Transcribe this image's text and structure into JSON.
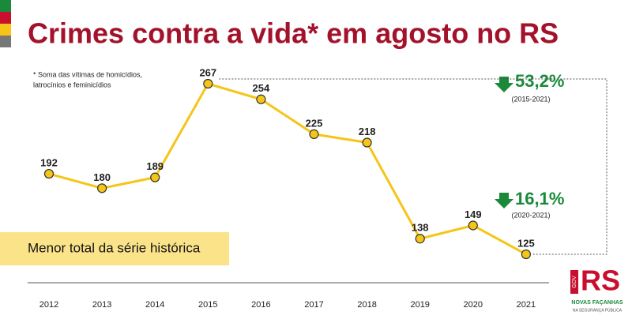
{
  "chart_data": {
    "type": "line",
    "title": "Crimes contra a vida* em agosto no RS",
    "note": [
      "* Soma das vítimas de homicídios,",
      "latrocínios e feminicídios"
    ],
    "categories": [
      "2012",
      "2013",
      "2014",
      "2015",
      "2016",
      "2017",
      "2018",
      "2019",
      "2020",
      "2021"
    ],
    "values": [
      192,
      180,
      189,
      267,
      254,
      225,
      218,
      138,
      149,
      125
    ],
    "color": "#f5c518",
    "annotations": [
      {
        "text": "53,2%",
        "period": "(2015-2021)"
      },
      {
        "text": "16,1%",
        "period": "(2020-2021)"
      }
    ],
    "callout": "Menor total da série histórica",
    "logo": {
      "mark": "RS",
      "gov": "GOV",
      "line1": "NOVAS FAÇANHAS",
      "line2": "NA SEGURANÇA PÚBLICA"
    }
  }
}
